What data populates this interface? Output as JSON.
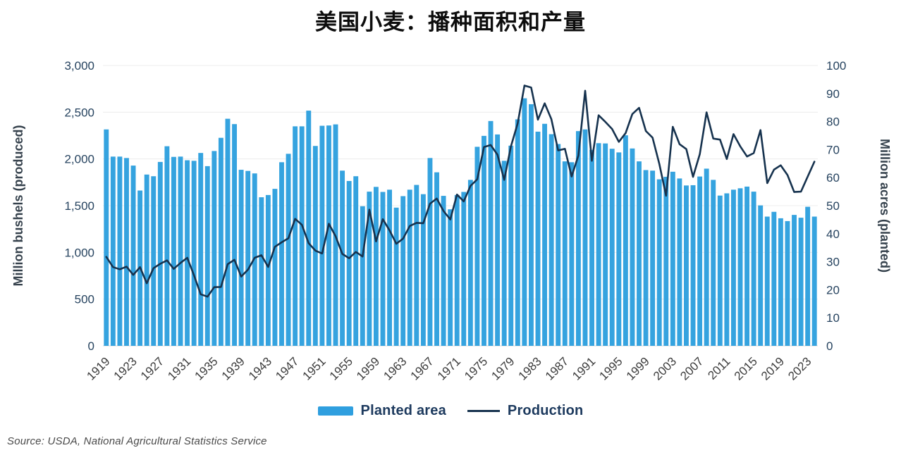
{
  "title": "美国小麦：播种面积和产量",
  "source": "Source: USDA, National Agricultural Statistics Service",
  "legend": {
    "items": [
      {
        "label": "Planted area",
        "type": "bar",
        "color": "#2f9fdf"
      },
      {
        "label": "Production",
        "type": "line",
        "color": "#16324e"
      }
    ]
  },
  "colors": {
    "bar": "#35a3df",
    "line": "#16324e",
    "grid": "#ececec",
    "baseline": "#d8d8d8"
  },
  "chart_data": {
    "type": "bar+line combo, dual y-axis",
    "title": "美国小麦：播种面积和产量",
    "x": [
      1919,
      1920,
      1921,
      1922,
      1923,
      1924,
      1925,
      1926,
      1927,
      1928,
      1929,
      1930,
      1931,
      1932,
      1933,
      1934,
      1935,
      1936,
      1937,
      1938,
      1939,
      1940,
      1941,
      1942,
      1943,
      1944,
      1945,
      1946,
      1947,
      1948,
      1949,
      1950,
      1951,
      1952,
      1953,
      1954,
      1955,
      1956,
      1957,
      1958,
      1959,
      1960,
      1961,
      1962,
      1963,
      1964,
      1965,
      1966,
      1967,
      1968,
      1969,
      1970,
      1971,
      1972,
      1973,
      1974,
      1975,
      1976,
      1977,
      1978,
      1979,
      1980,
      1981,
      1982,
      1983,
      1984,
      1985,
      1986,
      1987,
      1988,
      1989,
      1990,
      1991,
      1992,
      1993,
      1994,
      1995,
      1996,
      1997,
      1998,
      1999,
      2000,
      2001,
      2002,
      2003,
      2004,
      2005,
      2006,
      2007,
      2008,
      2009,
      2010,
      2011,
      2012,
      2013,
      2014,
      2015,
      2016,
      2017,
      2018,
      2019,
      2020,
      2021,
      2022,
      2023,
      2024
    ],
    "x_tick_labels": [
      "1919",
      "1923",
      "1927",
      "1931",
      "1935",
      "1939",
      "1943",
      "1947",
      "1951",
      "1955",
      "1959",
      "1963",
      "1967",
      "1971",
      "1975",
      "1979",
      "1983",
      "1987",
      "1991",
      "1995",
      "1999",
      "2003",
      "2007",
      "2011",
      "2015",
      "2019",
      "2023"
    ],
    "series": [
      {
        "name": "Planted area",
        "type": "bar",
        "axis": "right",
        "unit": "million acres",
        "color": "#35a3df",
        "values": [
          77.2,
          67.5,
          67.5,
          67.0,
          64.3,
          55.4,
          61.1,
          60.5,
          65.6,
          71.2,
          67.4,
          67.5,
          66.2,
          66.0,
          68.8,
          64.1,
          69.5,
          74.2,
          81.0,
          79.1,
          62.8,
          62.4,
          61.5,
          53.0,
          53.8,
          56.0,
          65.5,
          68.5,
          78.3,
          78.3,
          83.9,
          71.3,
          78.5,
          78.6,
          79.0,
          62.5,
          58.8,
          60.5,
          49.8,
          55.0,
          56.7,
          54.9,
          55.7,
          49.3,
          53.4,
          55.7,
          57.4,
          54.1,
          67.0,
          61.9,
          53.5,
          48.7,
          53.8,
          54.9,
          59.2,
          71.0,
          74.9,
          80.2,
          75.4,
          66.0,
          71.4,
          80.8,
          88.3,
          86.2,
          76.4,
          79.2,
          75.5,
          72.0,
          65.8,
          65.5,
          76.6,
          77.2,
          69.9,
          72.3,
          72.2,
          70.3,
          69.0,
          75.1,
          70.4,
          65.8,
          62.7,
          62.5,
          59.4,
          60.3,
          62.1,
          59.7,
          57.2,
          57.3,
          60.4,
          63.2,
          59.2,
          53.6,
          54.4,
          55.7,
          56.2,
          56.8,
          55.0,
          50.1,
          46.1,
          47.8,
          45.5,
          44.5,
          46.7,
          45.7,
          49.6,
          46.1
        ]
      },
      {
        "name": "Production",
        "type": "line",
        "axis": "left",
        "unit": "million bushels",
        "color": "#16324e",
        "values": [
          952,
          843,
          819,
          847,
          759,
          842,
          669,
          831,
          878,
          914,
          824,
          887,
          942,
          756,
          552,
          526,
          628,
          630,
          874,
          920,
          741,
          815,
          942,
          969,
          844,
          1060,
          1108,
          1152,
          1359,
          1295,
          1098,
          1019,
          988,
          1306,
          1173,
          984,
          937,
          1005,
          956,
          1457,
          1118,
          1355,
          1235,
          1092,
          1147,
          1283,
          1316,
          1312,
          1522,
          1576,
          1443,
          1352,
          1619,
          1546,
          1711,
          1782,
          2127,
          2149,
          2046,
          1776,
          2134,
          2381,
          2785,
          2765,
          2420,
          2595,
          2425,
          2092,
          2108,
          1812,
          2037,
          2730,
          1980,
          2467,
          2396,
          2321,
          2183,
          2277,
          2481,
          2547,
          2299,
          2228,
          1947,
          1606,
          2344,
          2158,
          2105,
          1808,
          2051,
          2499,
          2218,
          2207,
          1999,
          2266,
          2135,
          2026,
          2062,
          2309,
          1741,
          1885,
          1932,
          1828,
          1646,
          1650,
          1812,
          1971
        ]
      }
    ],
    "left_axis": {
      "title": "Million bushels (produced)",
      "range": [
        0,
        3000
      ],
      "tick_step": 500,
      "ticks": [
        {
          "v": 0,
          "label": "0"
        },
        {
          "v": 500,
          "label": "500"
        },
        {
          "v": 1000,
          "label": "1,000"
        },
        {
          "v": 1500,
          "label": "1,500"
        },
        {
          "v": 2000,
          "label": "2,000"
        },
        {
          "v": 2500,
          "label": "2,500"
        },
        {
          "v": 3000,
          "label": "3,000"
        }
      ]
    },
    "right_axis": {
      "title": "Million acres (planted)",
      "range": [
        0,
        100
      ],
      "tick_step": 10,
      "ticks": [
        {
          "v": 0,
          "label": "0"
        },
        {
          "v": 10,
          "label": "10"
        },
        {
          "v": 20,
          "label": "20"
        },
        {
          "v": 30,
          "label": "30"
        },
        {
          "v": 40,
          "label": "40"
        },
        {
          "v": 50,
          "label": "50"
        },
        {
          "v": 60,
          "label": "60"
        },
        {
          "v": 70,
          "label": "70"
        },
        {
          "v": 80,
          "label": "80"
        },
        {
          "v": 90,
          "label": "90"
        },
        {
          "v": 100,
          "label": "100"
        }
      ]
    },
    "grid": "horizontal",
    "legend_position": "bottom"
  }
}
